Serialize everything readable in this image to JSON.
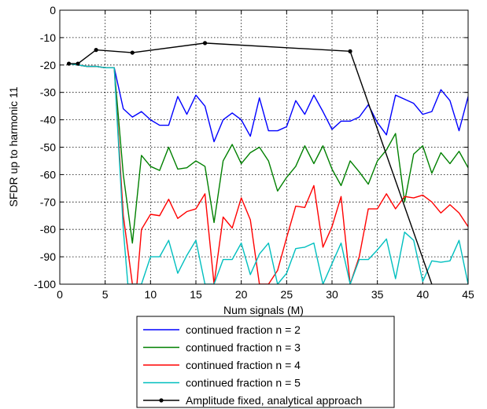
{
  "chart_data": {
    "type": "line",
    "xlabel": "Num signals (M)",
    "ylabel": "SFDR up to harmonic 11",
    "xlim": [
      0,
      45
    ],
    "ylim": [
      -100,
      0
    ],
    "xticks": [
      "0",
      "5",
      "10",
      "15",
      "20",
      "25",
      "30",
      "35",
      "40",
      "45"
    ],
    "yticks": [
      "0",
      "-10",
      "-20",
      "-30",
      "-40",
      "-50",
      "-60",
      "-70",
      "-80",
      "-90",
      "-100"
    ],
    "grid": true,
    "legend_position": "below-plot",
    "series": [
      {
        "name": "continued fraction n = 2",
        "color": "#0000ff",
        "marker": "none",
        "points": [
          [
            1,
            -19.5
          ],
          [
            2,
            -20
          ],
          [
            3,
            -20.5
          ],
          [
            4,
            -20.5
          ],
          [
            5,
            -21
          ],
          [
            6,
            -21
          ],
          [
            7,
            -36
          ],
          [
            8,
            -39
          ],
          [
            9,
            -37
          ],
          [
            10,
            -40
          ],
          [
            11,
            -42
          ],
          [
            12,
            -42
          ],
          [
            13,
            -31.5
          ],
          [
            14,
            -38
          ],
          [
            15,
            -31
          ],
          [
            16,
            -35
          ],
          [
            17,
            -48
          ],
          [
            18,
            -40
          ],
          [
            19,
            -37.5
          ],
          [
            20,
            -40
          ],
          [
            21,
            -46
          ],
          [
            22,
            -32
          ],
          [
            23,
            -44
          ],
          [
            24,
            -44
          ],
          [
            25,
            -42.5
          ],
          [
            26,
            -33
          ],
          [
            27,
            -38
          ],
          [
            28,
            -31
          ],
          [
            29,
            -37
          ],
          [
            30,
            -43.5
          ],
          [
            31,
            -40.5
          ],
          [
            32,
            -40.5
          ],
          [
            33,
            -39
          ],
          [
            34,
            -34.5
          ],
          [
            35,
            -41
          ],
          [
            36,
            -45.5
          ],
          [
            37,
            -31
          ],
          [
            38,
            -32.5
          ],
          [
            39,
            -34
          ],
          [
            40,
            -38
          ],
          [
            41,
            -37
          ],
          [
            42,
            -29
          ],
          [
            43,
            -33
          ],
          [
            44,
            -44
          ],
          [
            45,
            -31.5
          ]
        ]
      },
      {
        "name": "continued fraction n = 3",
        "color": "#008000",
        "marker": "none",
        "points": [
          [
            1,
            -19.5
          ],
          [
            2,
            -20
          ],
          [
            3,
            -20.5
          ],
          [
            4,
            -20.5
          ],
          [
            5,
            -21
          ],
          [
            6,
            -21
          ],
          [
            7,
            -60
          ],
          [
            8,
            -85
          ],
          [
            9,
            -53
          ],
          [
            10,
            -57
          ],
          [
            11,
            -58.5
          ],
          [
            12,
            -50
          ],
          [
            13,
            -58
          ],
          [
            14,
            -57.5
          ],
          [
            15,
            -55
          ],
          [
            16,
            -57
          ],
          [
            17,
            -77.5
          ],
          [
            18,
            -55
          ],
          [
            19,
            -49
          ],
          [
            20,
            -56
          ],
          [
            21,
            -52
          ],
          [
            22,
            -50
          ],
          [
            23,
            -55
          ],
          [
            24,
            -66
          ],
          [
            25,
            -61
          ],
          [
            26,
            -57
          ],
          [
            27,
            -49.5
          ],
          [
            28,
            -56
          ],
          [
            29,
            -49.5
          ],
          [
            30,
            -58
          ],
          [
            31,
            -64
          ],
          [
            32,
            -55
          ],
          [
            33,
            -59
          ],
          [
            34,
            -63.5
          ],
          [
            35,
            -55
          ],
          [
            36,
            -51
          ],
          [
            37,
            -45
          ],
          [
            38,
            -70
          ],
          [
            39,
            -52.5
          ],
          [
            40,
            -49.5
          ],
          [
            41,
            -59.5
          ],
          [
            42,
            -52
          ],
          [
            43,
            -56
          ],
          [
            44,
            -51.5
          ],
          [
            45,
            -57.5
          ]
        ]
      },
      {
        "name": "continued fraction n = 4",
        "color": "#ff0000",
        "marker": "none",
        "points": [
          [
            1,
            -19.5
          ],
          [
            2,
            -20
          ],
          [
            3,
            -20.5
          ],
          [
            4,
            -20.5
          ],
          [
            5,
            -21
          ],
          [
            6,
            -21
          ],
          [
            7,
            -75
          ],
          [
            8,
            -100
          ],
          [
            8.5,
            -100
          ],
          [
            9,
            -80
          ],
          [
            10,
            -74.5
          ],
          [
            11,
            -75
          ],
          [
            12,
            -69
          ],
          [
            13,
            -76
          ],
          [
            14,
            -73.5
          ],
          [
            15,
            -72.5
          ],
          [
            16,
            -67
          ],
          [
            17,
            -100
          ],
          [
            18,
            -75.5
          ],
          [
            19,
            -79.5
          ],
          [
            20,
            -68.5
          ],
          [
            21,
            -76.5
          ],
          [
            22,
            -100
          ],
          [
            23,
            -100
          ],
          [
            24,
            -95
          ],
          [
            25,
            -83
          ],
          [
            26,
            -71.5
          ],
          [
            27,
            -72
          ],
          [
            28,
            -64
          ],
          [
            29,
            -86.5
          ],
          [
            30,
            -79
          ],
          [
            31,
            -68
          ],
          [
            32,
            -100
          ],
          [
            33,
            -90
          ],
          [
            34,
            -72.5
          ],
          [
            35,
            -72.5
          ],
          [
            36,
            -67
          ],
          [
            37,
            -72.5
          ],
          [
            38,
            -68
          ],
          [
            39,
            -68.5
          ],
          [
            40,
            -67.5
          ],
          [
            41,
            -70
          ],
          [
            42,
            -74
          ],
          [
            43,
            -71
          ],
          [
            44,
            -74
          ],
          [
            45,
            -79
          ]
        ]
      },
      {
        "name": "continued fraction n = 5",
        "color": "#00bfbf",
        "marker": "none",
        "points": [
          [
            1,
            -19.5
          ],
          [
            2,
            -20
          ],
          [
            3,
            -20.5
          ],
          [
            4,
            -20.5
          ],
          [
            5,
            -21
          ],
          [
            6,
            -21
          ],
          [
            7,
            -80
          ],
          [
            7.5,
            -100
          ],
          [
            9,
            -100
          ],
          [
            10,
            -90
          ],
          [
            11,
            -90
          ],
          [
            12,
            -84
          ],
          [
            13,
            -96
          ],
          [
            14,
            -89.5
          ],
          [
            15,
            -84
          ],
          [
            16,
            -100
          ],
          [
            17,
            -100
          ],
          [
            18,
            -91
          ],
          [
            19,
            -91
          ],
          [
            20,
            -85
          ],
          [
            21,
            -96.5
          ],
          [
            22,
            -89
          ],
          [
            23,
            -85
          ],
          [
            24,
            -100
          ],
          [
            25,
            -96
          ],
          [
            26,
            -87
          ],
          [
            27,
            -86.5
          ],
          [
            28,
            -85
          ],
          [
            29,
            -100
          ],
          [
            30,
            -92.5
          ],
          [
            31,
            -85
          ],
          [
            32,
            -100
          ],
          [
            33,
            -91
          ],
          [
            34,
            -91
          ],
          [
            35,
            -87.5
          ],
          [
            36,
            -83.5
          ],
          [
            37,
            -98
          ],
          [
            38,
            -81
          ],
          [
            39,
            -84
          ],
          [
            40,
            -99
          ],
          [
            41,
            -91.5
          ],
          [
            42,
            -92
          ],
          [
            43,
            -91.5
          ],
          [
            44,
            -84
          ],
          [
            45,
            -100
          ]
        ]
      },
      {
        "name": "Amplitude fixed, analytical approach",
        "color": "#000000",
        "marker": "dot",
        "points": [
          [
            1,
            -19.5
          ],
          [
            2,
            -19.5
          ],
          [
            4,
            -14.5
          ],
          [
            8,
            -15.5
          ],
          [
            16,
            -12
          ],
          [
            32,
            -15
          ],
          [
            41,
            -100
          ]
        ]
      }
    ]
  }
}
